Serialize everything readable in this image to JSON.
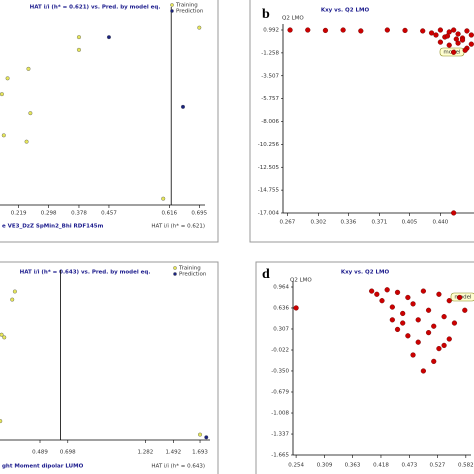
{
  "chart_data": [
    {
      "type": "scatter",
      "title": "HAT i/i (h* = 0.621) vs. Pred. by model eq.",
      "x_label": "e VE3_DzZ SpMin2_Bhi RDF145m",
      "x_label_right": "HAT i/i (h* = 0.621)",
      "xlim": [
        0.17,
        0.71
      ],
      "xticks": [
        0.219,
        0.298,
        0.378,
        0.457,
        0.616,
        0.695
      ],
      "ylim": [
        -3,
        3
      ],
      "threshold": 0.621,
      "legend": "upper right",
      "series": [
        {
          "name": "Training",
          "color": "#e6e65a",
          "x": [
            0.695,
            0.378,
            0.378,
            0.245,
            0.19,
            0.175,
            0.25,
            0.18,
            0.24,
            0.6
          ],
          "values": [
            2.6,
            2.3,
            1.9,
            1.3,
            1.0,
            0.5,
            -0.1,
            -0.8,
            -1.0,
            -2.8
          ]
        },
        {
          "name": "Prediction",
          "color": "#1a237e",
          "x": [
            0.457,
            0.652
          ],
          "values": [
            2.3,
            0.1
          ]
        }
      ]
    },
    {
      "type": "scatter",
      "panel_label": "b",
      "title": "Kxy vs. Q2 LMO",
      "y_label": "Q2 LMO",
      "annotation": "model",
      "xlim": [
        0.262,
        0.478
      ],
      "xticks": [
        0.267,
        0.302,
        0.336,
        0.371,
        0.405,
        {
          "value": 0.44,
          "label": "0.440"
        }
      ],
      "ylim": [
        -17.004,
        0.992
      ],
      "yticks": [
        0.992,
        -1.258,
        -3.507,
        -5.757,
        -8.006,
        -10.256,
        -12.505,
        -14.755,
        -17.004
      ],
      "series": [
        {
          "name": "Q2 LMO",
          "color": "#cc0000",
          "x": [
            0.27,
            0.29,
            0.31,
            0.33,
            0.35,
            0.38,
            0.4,
            0.42,
            0.43,
            0.435,
            0.44,
            0.445,
            0.45,
            0.455,
            0.46,
            0.465,
            0.47,
            0.475,
            0.44,
            0.45,
            0.46,
            0.47,
            0.455,
            0.465,
            0.475,
            0.448,
            0.458,
            0.468,
            0.455
          ],
          "values": [
            0.99,
            0.99,
            0.95,
            0.99,
            0.9,
            0.99,
            0.95,
            0.9,
            0.7,
            0.5,
            0.99,
            0.3,
            0.8,
            0.99,
            0.6,
            0.2,
            0.9,
            0.5,
            -0.2,
            -0.5,
            -0.3,
            -0.8,
            -1.2,
            0.0,
            -0.4,
            0.4,
            0.1,
            -1.0,
            -17.0
          ]
        }
      ]
    },
    {
      "type": "scatter",
      "title": "HAT i/i (h* = 0.643) vs. Pred. by model eq.",
      "x_label": "ght Moment dipolar LUMO",
      "x_label_right": "HAT i/i (h* = 0.643)",
      "xlim": [
        0.188,
        1.768
      ],
      "xticks": [
        0.489,
        0.698,
        1.282,
        1.492,
        1.693
      ],
      "ylim": [
        -3,
        3
      ],
      "threshold": 0.643,
      "legend": "upper right",
      "series": [
        {
          "name": "Training",
          "color": "#e6e65a",
          "x": [
            0.3,
            0.28,
            0.2,
            0.22,
            0.19,
            1.693
          ],
          "values": [
            2.5,
            2.2,
            0.9,
            0.8,
            -2.3,
            -2.8
          ]
        },
        {
          "name": "Prediction",
          "color": "#1a237e",
          "x": [
            1.74
          ],
          "values": [
            -2.9
          ]
        }
      ]
    },
    {
      "type": "scatter",
      "panel_label": "d",
      "title": "Kxy vs. Q2 LMO",
      "y_label": "Q2 LMO",
      "annotation": "model",
      "xlim": [
        0.248,
        0.592
      ],
      "xticks": [
        0.254,
        0.309,
        0.363,
        0.418,
        0.473,
        0.527,
        0.582
      ],
      "ylim": [
        -1.665,
        0.964
      ],
      "yticks": [
        0.964,
        0.636,
        0.307,
        -0.022,
        {
          "value": -0.35,
          "label": "-0.350"
        },
        -0.679,
        -1.008,
        -1.337,
        -1.665
      ],
      "series": [
        {
          "name": "Q2 LMO",
          "color": "#cc0000",
          "x": [
            0.254,
            0.4,
            0.41,
            0.42,
            0.43,
            0.44,
            0.45,
            0.46,
            0.47,
            0.48,
            0.49,
            0.5,
            0.51,
            0.52,
            0.53,
            0.54,
            0.55,
            0.56,
            0.57,
            0.58,
            0.45,
            0.47,
            0.49,
            0.51,
            0.53,
            0.55,
            0.44,
            0.48,
            0.52,
            0.5,
            0.46,
            0.54
          ],
          "values": [
            0.636,
            0.9,
            0.85,
            0.75,
            0.92,
            0.65,
            0.88,
            0.55,
            0.8,
            0.7,
            0.45,
            0.9,
            0.6,
            0.35,
            0.85,
            0.5,
            0.75,
            0.4,
            0.8,
            0.6,
            0.3,
            0.2,
            0.1,
            0.25,
            0.0,
            0.15,
            0.45,
            -0.1,
            -0.2,
            -0.35,
            0.4,
            0.05
          ]
        }
      ]
    }
  ]
}
